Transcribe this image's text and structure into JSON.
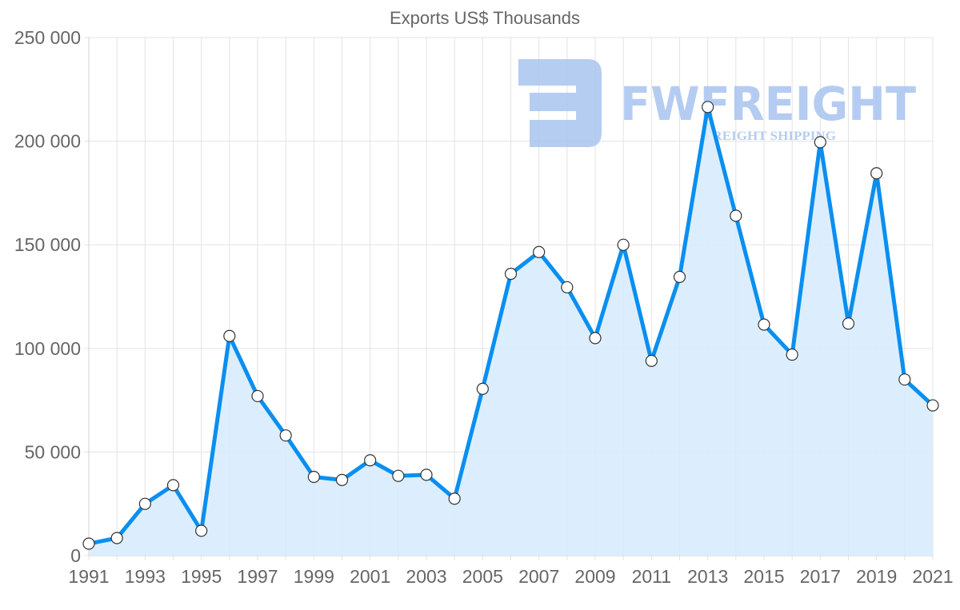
{
  "chart_data": {
    "type": "area",
    "title": "Exports US$ Thousands",
    "xlabel": "",
    "ylabel": "",
    "ylim": [
      0,
      250000
    ],
    "yticks": [
      0,
      50000,
      100000,
      150000,
      200000,
      250000
    ],
    "ytick_labels": [
      "0",
      "50 000",
      "100 000",
      "150 000",
      "200 000",
      "250 000"
    ],
    "xtick_labels": [
      "1991",
      "1993",
      "1995",
      "1997",
      "1999",
      "2001",
      "2003",
      "2005",
      "2007",
      "2009",
      "2011",
      "2013",
      "2015",
      "2017",
      "2019",
      "2021"
    ],
    "grid": true,
    "legend": null,
    "x": [
      1991,
      1992,
      1993,
      1994,
      1995,
      1996,
      1997,
      1998,
      1999,
      2000,
      2001,
      2002,
      2003,
      2004,
      2005,
      2006,
      2007,
      2008,
      2009,
      2010,
      2011,
      2012,
      2013,
      2014,
      2015,
      2016,
      2017,
      2018,
      2019,
      2020,
      2021
    ],
    "series": [
      {
        "name": "Exports US$ Thousands",
        "values": [
          5800,
          8500,
          25000,
          34000,
          12000,
          106000,
          77000,
          58000,
          38000,
          36500,
          46000,
          38500,
          39000,
          27500,
          80500,
          136000,
          146500,
          129500,
          105000,
          150000,
          94000,
          134500,
          216500,
          164000,
          111500,
          97000,
          199500,
          112000,
          184500,
          85000,
          72500
        ],
        "line_color": "#0a8ff0",
        "fill_color": "#d8ecfd",
        "marker_fill": "#ffffff",
        "marker_stroke": "#333333"
      }
    ]
  },
  "watermark": {
    "brand": "FWFREIGHT",
    "tagline": "FREIGHT SHIPPING",
    "color": "#a9c4f0"
  }
}
